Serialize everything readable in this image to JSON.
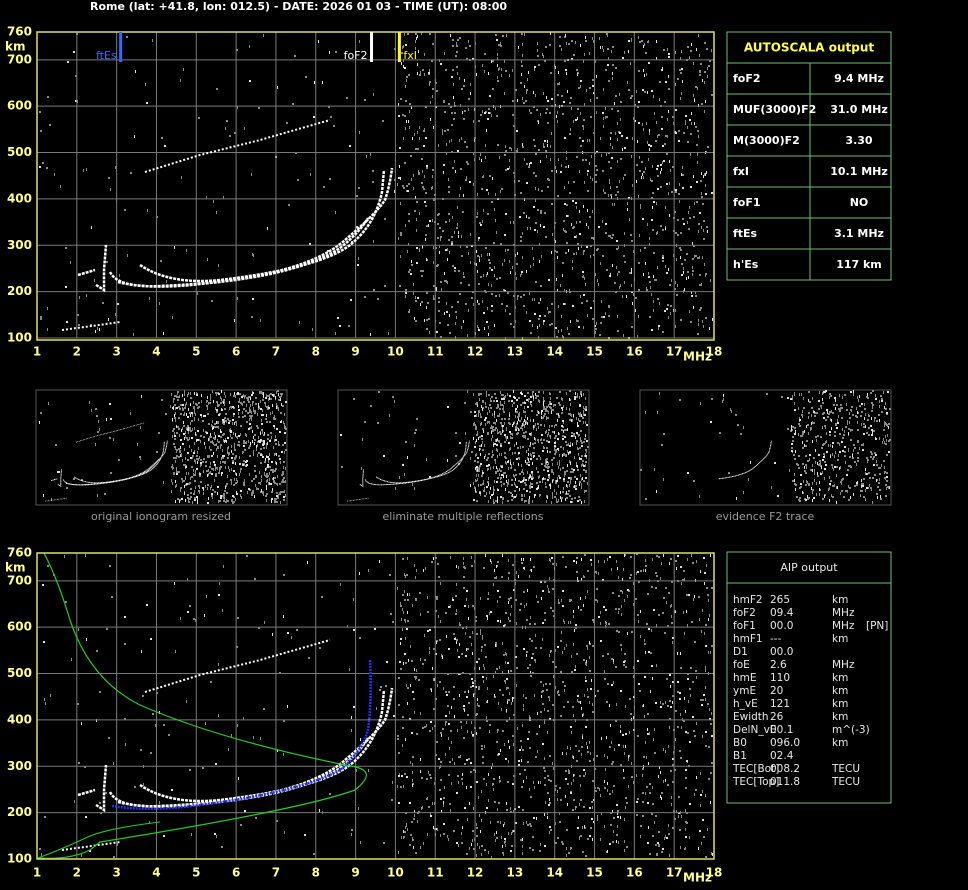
{
  "header": "Rome (lat: +41.8, lon: 012.5) - DATE: 2026 01 03 - TIME (UT): 08:00",
  "ionogram_top": {
    "y_unit": "km",
    "x_unit": "MHz",
    "xlim": [
      1,
      18
    ],
    "ylim": [
      100,
      760
    ],
    "xticks": [
      1,
      2,
      3,
      4,
      5,
      6,
      7,
      8,
      9,
      10,
      11,
      12,
      13,
      14,
      15,
      16,
      17,
      18
    ],
    "yticks": [
      100,
      200,
      300,
      400,
      500,
      600,
      700,
      760
    ],
    "markers": [
      {
        "label": "ftEs",
        "freq": 3.1,
        "color": "#2a6cff"
      },
      {
        "label": "foF2",
        "freq": 9.4,
        "color": "#ffffff"
      },
      {
        "label": "fxI",
        "freq": 10.1,
        "color": "#ffff00"
      }
    ]
  },
  "autoscala": {
    "title": "AUTOSCALA output",
    "rows": [
      {
        "label": "foF2",
        "value": "9.4 MHz",
        "color": "#ffffff"
      },
      {
        "label": "MUF(3000)F2",
        "value": "31.0 MHz",
        "color": "#ffffff"
      },
      {
        "label": "M(3000)F2",
        "value": "3.30",
        "color": "#ffffff"
      },
      {
        "label": "fxI",
        "value": "10.1 MHz",
        "color": "#ffff00"
      },
      {
        "label": "foF1",
        "value": "NO",
        "color": "#ff2020"
      },
      {
        "label": "ftEs",
        "value": "3.1 MHz",
        "color": "#3c78ff"
      },
      {
        "label": "h'Es",
        "value": "117    km",
        "color": "#ffffff"
      }
    ]
  },
  "thumbnails": [
    "original ionogram resized",
    "eliminate multiple reflections",
    "evidence F2 trace"
  ],
  "ionogram_bottom": {
    "y_unit": "km",
    "x_unit": "MHz",
    "xlim": [
      1,
      18
    ],
    "ylim": [
      100,
      760
    ],
    "xticks": [
      1,
      2,
      3,
      4,
      5,
      6,
      7,
      8,
      9,
      10,
      11,
      12,
      13,
      14,
      15,
      16,
      17,
      18
    ],
    "yticks": [
      100,
      200,
      300,
      400,
      500,
      600,
      700,
      760
    ]
  },
  "aip": {
    "title": "AIP output",
    "rows": [
      [
        "hmF2",
        "265",
        "km"
      ],
      [
        "foF2",
        "09.4",
        "MHz"
      ],
      [
        "foF1",
        "00.0",
        "MHz",
        "[PN]"
      ],
      [
        "hmF1",
        "---",
        "km"
      ],
      [
        "D1",
        "00.0"
      ],
      [
        "foE",
        "2.6",
        "MHz"
      ],
      [
        "hmE",
        "110",
        "km"
      ],
      [
        "ymE",
        "20",
        "km"
      ],
      [
        "h_vE",
        "121",
        "km"
      ],
      [
        "Ewidth",
        "26",
        "km"
      ],
      [
        "DelN_vE",
        "00.1",
        "m^(-3)"
      ],
      [
        "B0",
        "096.0",
        "km"
      ],
      [
        "B1",
        "02.4"
      ],
      [
        "TEC[Bot]",
        "008.2",
        "TECU"
      ],
      [
        "TEC[Top]",
        "011.8",
        "TECU"
      ]
    ]
  }
}
